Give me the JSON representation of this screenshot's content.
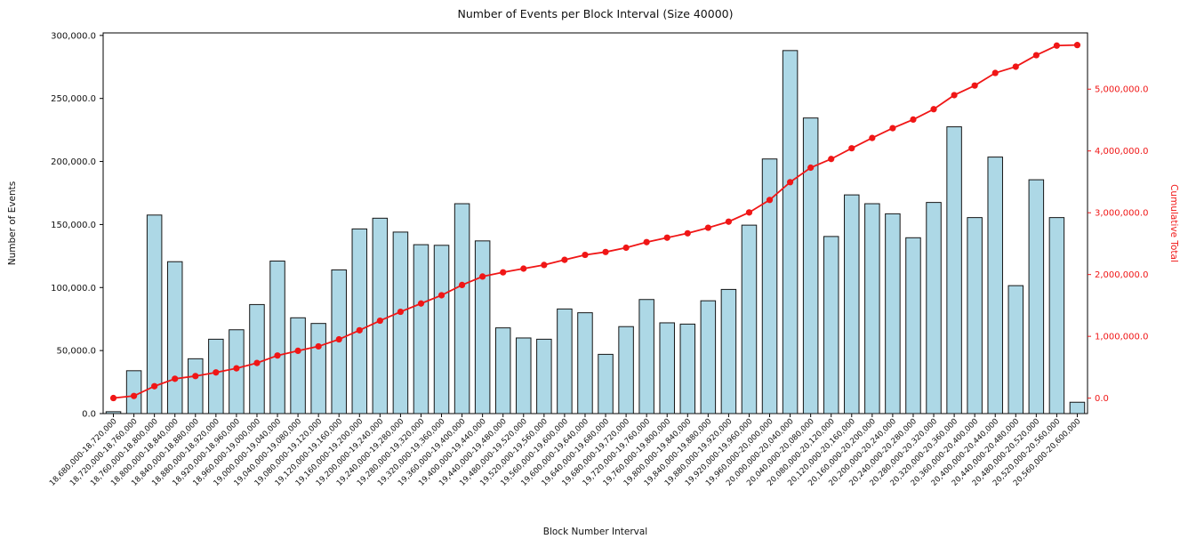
{
  "chart_data": {
    "type": "bar",
    "title": "Number of Events per Block Interval (Size 40000)",
    "xlabel": "Block Number Interval",
    "ylabel": "Number of Events",
    "ylabel_right": "Cumulative Total",
    "grid": false,
    "legend": "none",
    "categories": [
      "18,680,000-18,720,000",
      "18,720,000-18,760,000",
      "18,760,000-18,800,000",
      "18,800,000-18,840,000",
      "18,840,000-18,880,000",
      "18,880,000-18,920,000",
      "18,920,000-18,960,000",
      "18,960,000-19,000,000",
      "19,000,000-19,040,000",
      "19,040,000-19,080,000",
      "19,080,000-19,120,000",
      "19,120,000-19,160,000",
      "19,160,000-19,200,000",
      "19,200,000-19,240,000",
      "19,240,000-19,280,000",
      "19,280,000-19,320,000",
      "19,320,000-19,360,000",
      "19,360,000-19,400,000",
      "19,400,000-19,440,000",
      "19,440,000-19,480,000",
      "19,480,000-19,520,000",
      "19,520,000-19,560,000",
      "19,560,000-19,600,000",
      "19,600,000-19,640,000",
      "19,640,000-19,680,000",
      "19,680,000-19,720,000",
      "19,720,000-19,760,000",
      "19,760,000-19,800,000",
      "19,800,000-19,840,000",
      "19,840,000-19,880,000",
      "19,880,000-19,920,000",
      "19,920,000-19,960,000",
      "19,960,000-20,000,000",
      "20,000,000-20,040,000",
      "20,040,000-20,080,000",
      "20,080,000-20,120,000",
      "20,120,000-20,160,000",
      "20,160,000-20,200,000",
      "20,200,000-20,240,000",
      "20,240,000-20,280,000",
      "20,280,000-20,320,000",
      "20,320,000-20,360,000",
      "20,360,000-20,400,000",
      "20,400,000-20,440,000",
      "20,440,000-20,480,000",
      "20,480,000-20,520,000",
      "20,520,000-20,560,000",
      "20,560,000-20,600,000"
    ],
    "series": [
      {
        "name": "Number of Events",
        "type": "bar",
        "axis": "left",
        "color": "#ADD8E6",
        "edge_color": "#161616",
        "values": [
          1500,
          34000,
          157500,
          120500,
          43500,
          59000,
          66500,
          86500,
          121000,
          76000,
          71500,
          114000,
          146500,
          155000,
          144000,
          134000,
          133500,
          166500,
          137000,
          68000,
          60000,
          59000,
          83000,
          80000,
          47000,
          69000,
          90500,
          72000,
          71000,
          89500,
          98500,
          149500,
          202000,
          288000,
          234500,
          140500,
          173500,
          166500,
          158500,
          139500,
          167500,
          227500,
          155500,
          203500,
          101500,
          185500,
          155500,
          9000
        ]
      },
      {
        "name": "Cumulative Total",
        "type": "line",
        "axis": "right",
        "color": "#f01616",
        "marker": "o",
        "values": [
          1500,
          35500,
          193000,
          313500,
          357000,
          416000,
          482500,
          569000,
          690000,
          766000,
          837500,
          951500,
          1098000,
          1253000,
          1397000,
          1531000,
          1664500,
          1831000,
          1968000,
          2036000,
          2096000,
          2155000,
          2238000,
          2318000,
          2365000,
          2434000,
          2524500,
          2596500,
          2667500,
          2757000,
          2855500,
          3005000,
          3207000,
          3495000,
          3729500,
          3870000,
          4043500,
          4210000,
          4368500,
          4508000,
          4675500,
          4903000,
          5058500,
          5262000,
          5363500,
          5549000,
          5704500,
          5713500
        ]
      }
    ],
    "left_axis": {
      "label": "Number of Events",
      "tick_labels": [
        "0.0",
        "50,000.0",
        "100,000.0",
        "150,000.0",
        "200,000.0",
        "250,000.0",
        "300,000.0"
      ],
      "tick_values": [
        0,
        50000,
        100000,
        150000,
        200000,
        250000,
        300000
      ],
      "range": [
        0,
        302000
      ],
      "color": "#111111"
    },
    "right_axis": {
      "label": "Cumulative Total",
      "tick_labels": [
        "0.0",
        "1,000,000.0",
        "2,000,000.0",
        "3,000,000.0",
        "4,000,000.0",
        "5,000,000.0"
      ],
      "tick_values": [
        0,
        1000000,
        2000000,
        3000000,
        4000000,
        5000000
      ],
      "range": [
        -250000,
        5910000
      ],
      "color": "#f01616"
    }
  }
}
